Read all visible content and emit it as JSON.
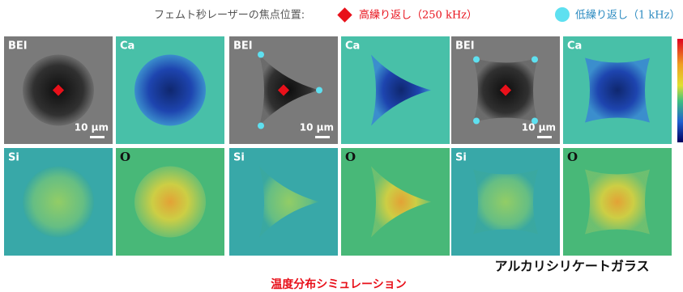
{
  "legend": {
    "title": "フェムト秒レーザーの焦点位置:",
    "high": "高繰り返し（250 kHz）",
    "low": "低繰り返し（1 kHz）"
  },
  "groups": [
    {
      "panels": [
        "BEI",
        "Ca",
        "Si",
        "O"
      ],
      "scale_bar": "10 μm"
    },
    {
      "panels": [
        "BEI",
        "Ca",
        "Si",
        "O"
      ],
      "scale_bar": "10 μm"
    },
    {
      "panels": [
        "BEI",
        "Ca",
        "Si",
        "O"
      ],
      "scale_bar": "10 μm"
    }
  ],
  "captions": {
    "material": "アルカリシリケートガラス",
    "simulation": "温度分布シミュレーション"
  }
}
